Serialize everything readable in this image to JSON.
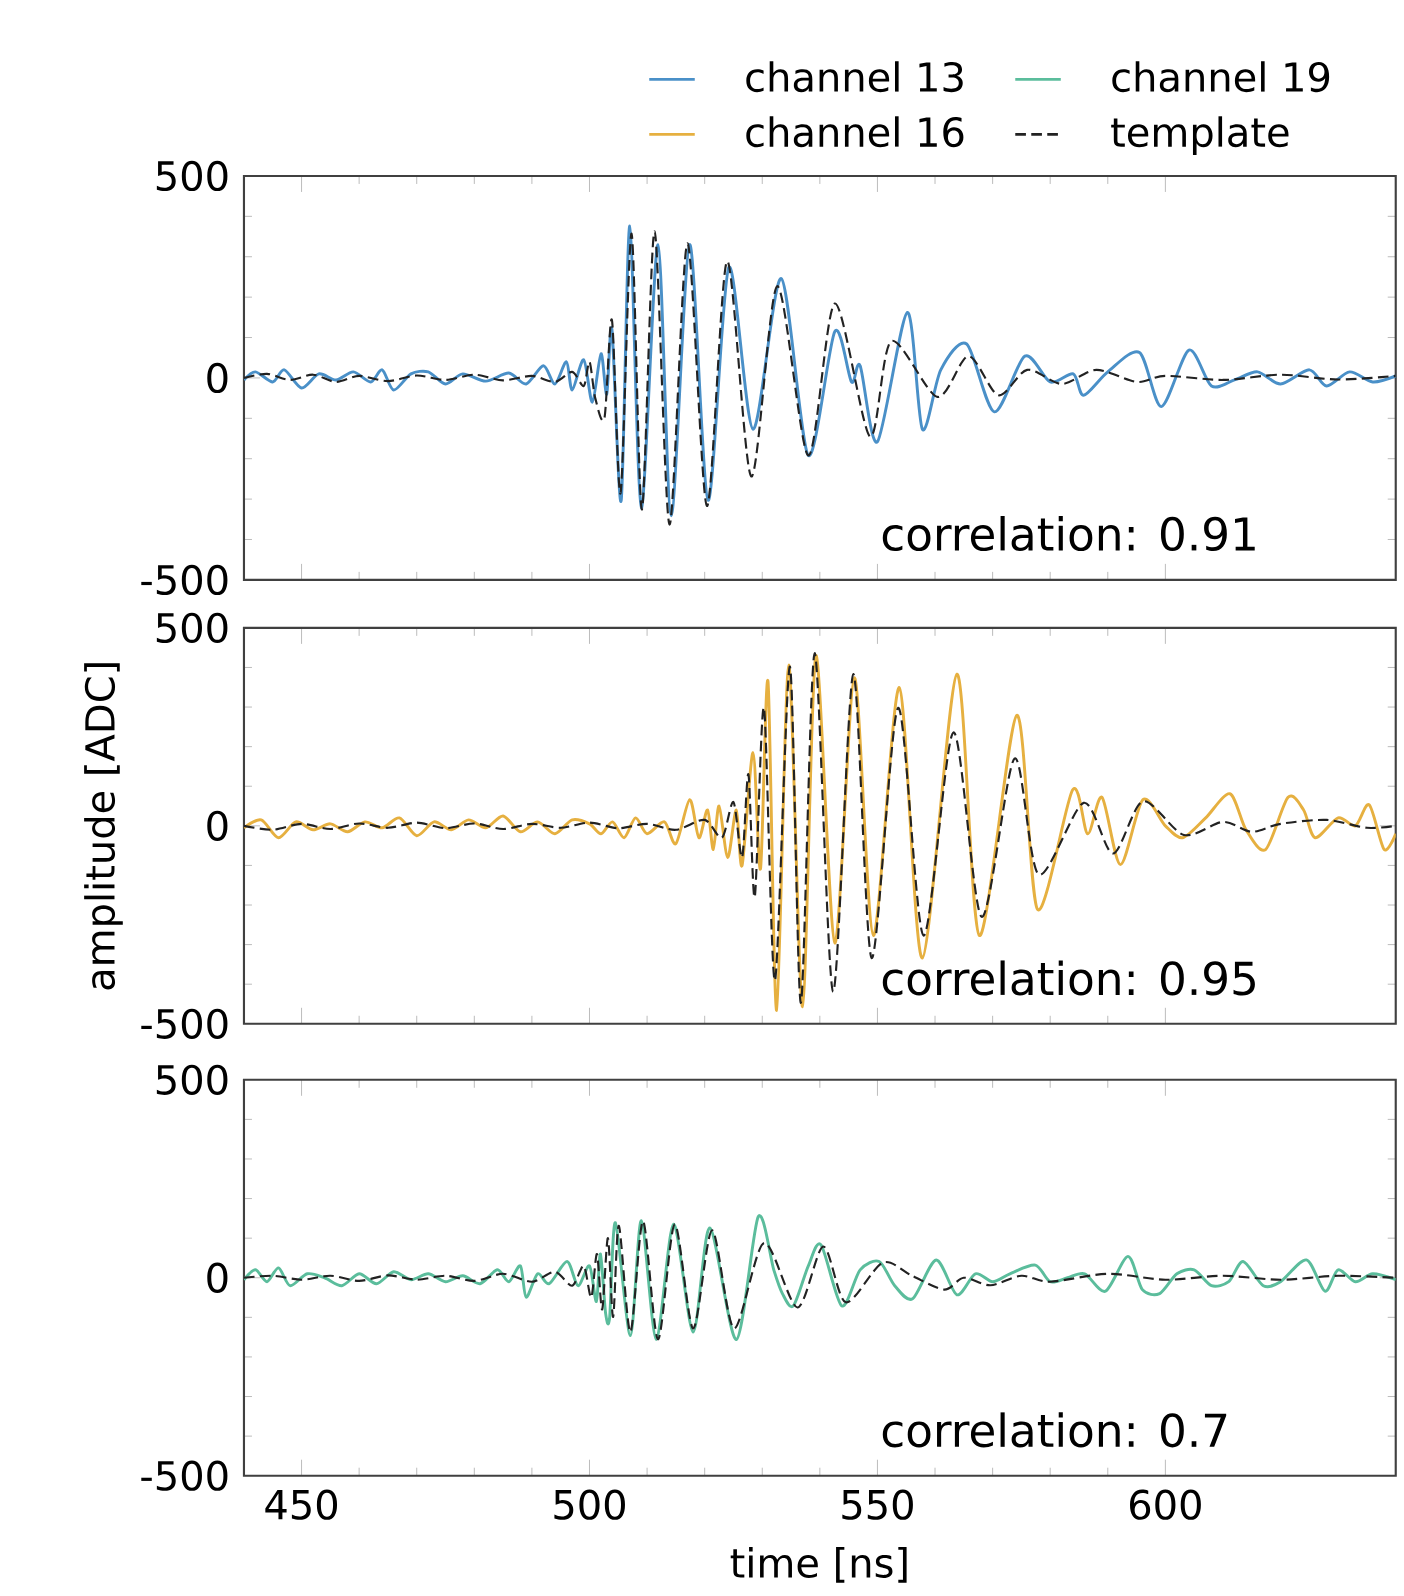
{
  "chart_data": [
    {
      "type": "line",
      "xlim": [
        440,
        640
      ],
      "xticks": [
        450,
        500,
        550,
        600
      ],
      "ylim": [
        -500,
        500
      ],
      "yticks": [
        -500,
        0,
        500
      ],
      "tick_labels": "y",
      "legend": "top",
      "annotations": [
        "correlation: 0.91"
      ],
      "series": [
        {
          "name": "channel 13",
          "color": "#4a90c8",
          "line_style": "solid",
          "x": [
            440,
            442,
            445,
            447,
            450,
            453,
            456,
            459,
            462,
            464,
            466,
            469,
            472,
            475,
            478,
            482,
            486,
            489,
            492,
            494,
            496,
            497,
            499,
            500.5,
            502,
            503,
            503.9,
            505.5,
            507,
            509,
            511.9,
            514.2,
            517.4,
            520.6,
            524.2,
            528.4,
            533.3,
            538,
            542.6,
            545.5,
            547,
            550,
            555.2,
            557.8,
            561,
            565.5,
            570.3,
            575.6,
            580,
            584,
            585.8,
            590,
            595.5,
            599.3,
            604.1,
            608,
            612,
            616,
            620,
            625,
            628,
            632,
            636,
            640
          ],
          "values": [
            -5,
            15,
            -10,
            20,
            -25,
            10,
            -5,
            15,
            -10,
            20,
            -30,
            10,
            15,
            -15,
            10,
            -8,
            12,
            -15,
            30,
            -15,
            40,
            -30,
            45,
            -60,
            60,
            -40,
            120,
            -304,
            376,
            -322,
            330,
            -341,
            330,
            -303,
            274,
            -127,
            246,
            -192,
            115,
            -10,
            30,
            -158,
            162,
            -127,
            20,
            84,
            -84,
            54,
            -10,
            10,
            -43,
            15,
            63,
            -71,
            69,
            -20,
            -5,
            15,
            -15,
            20,
            -20,
            15,
            -10,
            5
          ]
        },
        {
          "name": "template",
          "color": "#222222",
          "line_style": "dashed",
          "x": [
            440,
            444,
            448,
            452,
            456,
            460,
            465,
            470,
            475,
            480,
            485,
            490,
            494,
            497,
            499,
            500,
            501,
            502.6,
            503.9,
            505.4,
            507.3,
            509.1,
            511.3,
            513.9,
            517,
            520.4,
            523.9,
            528.1,
            532.6,
            538,
            542.6,
            548.7,
            552.4,
            560.4,
            565.8,
            571,
            576,
            582,
            588,
            595,
            600,
            610,
            620,
            630,
            640
          ],
          "values": [
            0,
            10,
            -5,
            8,
            -10,
            5,
            -8,
            6,
            -5,
            8,
            -6,
            5,
            -10,
            15,
            -20,
            40,
            -50,
            -99,
            143,
            -285,
            357,
            -326,
            363,
            -363,
            333,
            -317,
            289,
            -244,
            227,
            -192,
            184,
            -145,
            91,
            -47,
            54,
            -43,
            20,
            -15,
            20,
            -10,
            5,
            -5,
            8,
            -4,
            5
          ]
        }
      ]
    },
    {
      "type": "line",
      "xlim": [
        440,
        640
      ],
      "xticks": [
        450,
        500,
        550,
        600
      ],
      "ylim": [
        -500,
        500
      ],
      "yticks": [
        -500,
        0,
        500
      ],
      "tick_labels": "y",
      "ylabel": "amplitude [ADC]",
      "annotations": [
        "correlation: 0.95"
      ],
      "series": [
        {
          "name": "channel 16",
          "color": "#e6b040",
          "line_style": "solid",
          "x": [
            440,
            443,
            446,
            449,
            452,
            455,
            458,
            461,
            464,
            467,
            470,
            473,
            476,
            479,
            482,
            485,
            488,
            491,
            494,
            497,
            500,
            502,
            504,
            506,
            508,
            510,
            513,
            515,
            517.4,
            519,
            520.5,
            521.5,
            522.5,
            524,
            525.5,
            526.5,
            528.4,
            529.7,
            531,
            532.5,
            534.6,
            537,
            539.3,
            542.6,
            546,
            549.3,
            553.8,
            557.8,
            563.8,
            567.7,
            574.2,
            577.8,
            583.9,
            586.5,
            589,
            592.2,
            596.1,
            600,
            603,
            607,
            611.2,
            614,
            617.4,
            621.3,
            624,
            626,
            630,
            633,
            635.4,
            638,
            640
          ],
          "values": [
            -5,
            15,
            -30,
            10,
            -10,
            5,
            -15,
            10,
            -5,
            20,
            -25,
            10,
            -10,
            15,
            -5,
            25,
            -15,
            10,
            -20,
            15,
            5,
            -20,
            10,
            -30,
            20,
            -20,
            10,
            -45,
            66,
            -30,
            40,
            -60,
            50,
            -80,
            40,
            -100,
            185,
            -108,
            364,
            -466,
            406,
            -457,
            430,
            -296,
            374,
            -277,
            349,
            -334,
            383,
            -277,
            279,
            -211,
            91,
            -20,
            72,
            -98,
            66,
            0,
            -30,
            20,
            81,
            -10,
            -60,
            72,
            40,
            -30,
            20,
            0,
            53,
            -60,
            -20
          ]
        },
        {
          "color": "#222222",
          "line_style": "dashed",
          "x": [
            440,
            445,
            450,
            455,
            460,
            465,
            470,
            475,
            480,
            485,
            490,
            495,
            500,
            505,
            510,
            515,
            520,
            523,
            525,
            526.5,
            527.6,
            528.7,
            530.3,
            532.2,
            534.8,
            536.7,
            539.1,
            542.3,
            545.8,
            549,
            553.6,
            558,
            563.2,
            568.1,
            573.8,
            578,
            585.8,
            590.9,
            596.1,
            603.2,
            610,
            615,
            620,
            628,
            635,
            640
          ],
          "values": [
            0,
            -10,
            5,
            -8,
            6,
            -5,
            8,
            -6,
            6,
            -8,
            5,
            -5,
            8,
            -6,
            5,
            -10,
            15,
            -30,
            60,
            -80,
            130,
            -180,
            298,
            -391,
            402,
            -447,
            436,
            -419,
            383,
            -334,
            298,
            -277,
            236,
            -230,
            170,
            -123,
            58,
            -70,
            62,
            -23,
            10,
            -15,
            5,
            15,
            -5,
            0
          ]
        }
      ]
    },
    {
      "type": "line",
      "xlim": [
        440,
        640
      ],
      "xticks": [
        450,
        500,
        550,
        600
      ],
      "ylim": [
        -500,
        500
      ],
      "yticks": [
        -500,
        0,
        500
      ],
      "xlabel": "time [ns]",
      "annotations": [
        "correlation: 0.7"
      ],
      "series": [
        {
          "name": "channel 19",
          "color": "#5bbd9c",
          "line_style": "solid",
          "x": [
            440,
            442,
            444,
            446,
            448,
            451,
            454,
            457,
            460,
            463,
            466,
            469,
            472,
            475,
            478,
            481,
            484,
            486,
            488,
            489,
            491,
            493,
            496.1,
            498,
            500,
            501.2,
            501.9,
            502.8,
            503.5,
            504.5,
            507.1,
            509,
            511.6,
            514.6,
            518,
            520.9,
            525.5,
            529.3,
            532,
            533.5,
            535.4,
            538,
            540.2,
            543.8,
            547,
            550.3,
            553,
            556.1,
            560.2,
            563.8,
            567,
            570,
            573,
            577.4,
            580,
            583,
            586,
            589.6,
            593.5,
            596,
            599,
            602,
            605,
            608,
            611,
            613.5,
            617,
            620,
            624.5,
            627.7,
            630,
            633,
            636,
            640
          ],
          "values": [
            -5,
            20,
            -10,
            25,
            -20,
            10,
            0,
            -20,
            10,
            -15,
            15,
            -5,
            10,
            -10,
            5,
            -15,
            20,
            -10,
            30,
            -49,
            10,
            -15,
            41,
            -20,
            30,
            -60,
            60,
            -90,
            -100,
            139,
            -146,
            144,
            -156,
            135,
            -137,
            126,
            -156,
            154,
            20,
            -40,
            -71,
            30,
            83,
            -71,
            20,
            41,
            -20,
            -53,
            45,
            -43,
            10,
            -10,
            10,
            32,
            -10,
            0,
            10,
            -34,
            54,
            -30,
            -40,
            10,
            20,
            -20,
            -10,
            41,
            -20,
            -10,
            45,
            -34,
            20,
            -10,
            10,
            -5
          ]
        },
        {
          "color": "#222222",
          "line_style": "dashed",
          "x": [
            440,
            445,
            450,
            455,
            460,
            465,
            470,
            475,
            480,
            485,
            490,
            494,
            497,
            499,
            500.3,
            501.3,
            502.2,
            503.2,
            504.1,
            505.1,
            507.1,
            509.3,
            511.9,
            514.8,
            518,
            521.3,
            525.1,
            530.3,
            536.1,
            540.6,
            544.5,
            550.9,
            556,
            561.6,
            565,
            569.6,
            575,
            580,
            590,
            600,
            610,
            620,
            630,
            640
          ],
          "values": [
            0,
            5,
            -5,
            5,
            -8,
            6,
            -5,
            5,
            -8,
            10,
            -10,
            15,
            -20,
            30,
            -50,
            60,
            -80,
            100,
            -99,
            131,
            -137,
            143,
            -156,
            135,
            -128,
            120,
            -128,
            88,
            -75,
            79,
            -62,
            38,
            5,
            -30,
            0,
            -19,
            5,
            -10,
            10,
            -5,
            5,
            -5,
            5,
            0
          ]
        }
      ]
    }
  ]
}
